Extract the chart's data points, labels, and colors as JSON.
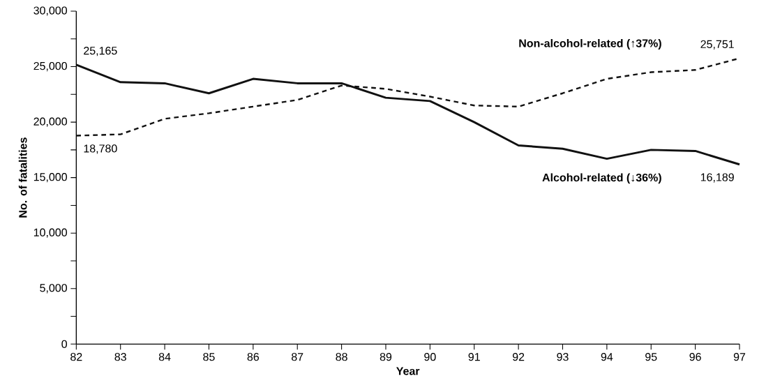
{
  "chart_data": {
    "type": "line",
    "xlabel": "Year",
    "ylabel": "No. of fatalities",
    "x": [
      82,
      83,
      84,
      85,
      86,
      87,
      88,
      89,
      90,
      91,
      92,
      93,
      94,
      95,
      96,
      97
    ],
    "series": [
      {
        "name": "Alcohol-related (↓36%)",
        "color": "#111111",
        "line_style": "solid",
        "values": [
          25165,
          23600,
          23500,
          22600,
          23900,
          23500,
          23500,
          22200,
          21900,
          20000,
          17900,
          17600,
          16700,
          17500,
          17400,
          16189
        ],
        "value_labels": [
          "25,165",
          null,
          null,
          null,
          null,
          null,
          null,
          null,
          null,
          null,
          null,
          null,
          null,
          null,
          null,
          "16,189"
        ]
      },
      {
        "name": "Non-alcohol-related (↑37%)",
        "color": "#111111",
        "line_style": "dashed",
        "values": [
          18780,
          18900,
          20300,
          20800,
          21400,
          22000,
          23300,
          23000,
          22300,
          21500,
          21400,
          22600,
          23900,
          24500,
          24700,
          25751
        ],
        "value_labels": [
          "18,780",
          null,
          null,
          null,
          null,
          null,
          null,
          null,
          null,
          null,
          null,
          null,
          null,
          null,
          null,
          "25,751"
        ]
      }
    ],
    "xlim": [
      82,
      97
    ],
    "xticks": [
      82,
      83,
      84,
      85,
      86,
      87,
      88,
      89,
      90,
      91,
      92,
      93,
      94,
      95,
      96,
      97
    ],
    "ylim": [
      0,
      30000
    ],
    "yticks": [
      0,
      {
        "value": 2500,
        "label": null
      },
      {
        "value": 5000,
        "label": "5,000"
      },
      {
        "value": 7500,
        "label": null
      },
      {
        "value": 10000,
        "label": "10,000"
      },
      {
        "value": 12500,
        "label": null
      },
      {
        "value": 15000,
        "label": "15,000"
      },
      {
        "value": 17500,
        "label": null
      },
      {
        "value": 20000,
        "label": "20,000"
      },
      {
        "value": 22500,
        "label": null
      },
      {
        "value": 25000,
        "label": "25,000"
      },
      {
        "value": 27500,
        "label": null
      },
      {
        "value": 30000,
        "label": "30,000"
      }
    ],
    "grid": false,
    "legend": false,
    "marker": "none"
  }
}
